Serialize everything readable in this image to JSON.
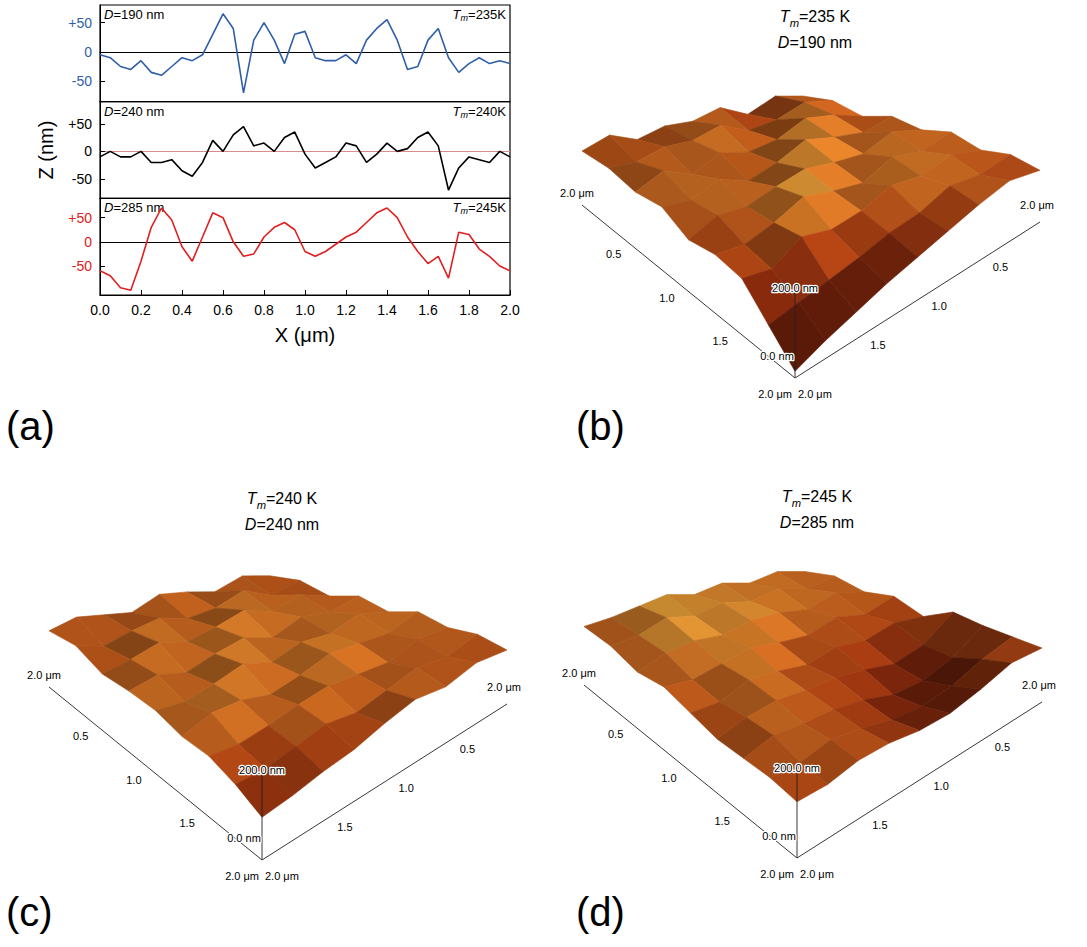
{
  "chart_data": [
    {
      "type": "line",
      "panel": "(a)",
      "xlabel": "X (μm)",
      "ylabel": "Z (nm)",
      "xlim": [
        0,
        2
      ],
      "xticks": [
        {
          "value": 0,
          "label": "0.0"
        },
        0.2,
        0.4,
        0.6,
        0.8,
        {
          "value": 1,
          "label": "1.0"
        },
        1.2,
        1.4,
        1.6,
        1.8,
        {
          "value": 2,
          "label": "2.0"
        }
      ],
      "x": [
        0,
        0.05,
        0.1,
        0.15,
        0.2,
        0.25,
        0.3,
        0.35,
        0.4,
        0.45,
        0.5,
        0.55,
        0.6,
        0.65,
        0.7,
        0.75,
        0.8,
        0.85,
        0.9,
        0.95,
        1,
        1.05,
        1.1,
        1.15,
        1.2,
        1.25,
        1.3,
        1.35,
        1.4,
        1.45,
        1.5,
        1.55,
        1.6,
        1.65,
        1.7,
        1.75,
        1.8,
        1.85,
        1.9,
        1.95,
        2
      ],
      "series": [
        {
          "color": "#2f5fa8",
          "annotation_left": "D=190 nm",
          "annotation_right": "Tm=235K",
          "ylim": [
            -85,
            80
          ],
          "yticks": [
            {
              "value": 50,
              "label": "+50"
            },
            0,
            -50
          ],
          "values": [
            -5,
            -10,
            -25,
            -30,
            -15,
            -35,
            -40,
            -25,
            -10,
            -15,
            -5,
            30,
            65,
            40,
            -70,
            20,
            50,
            20,
            -20,
            30,
            35,
            -10,
            -15,
            -15,
            -5,
            -20,
            20,
            40,
            55,
            20,
            -30,
            -25,
            20,
            40,
            -10,
            -35,
            -20,
            -10,
            -20,
            -15,
            -20
          ]
        },
        {
          "color": "#000000",
          "annotation_left": "D=240 nm",
          "annotation_right": "Tm=240K",
          "ylim": [
            -85,
            90
          ],
          "yticks": [
            {
              "value": 50,
              "label": "+50"
            },
            0,
            -50
          ],
          "values": [
            -10,
            0,
            -10,
            -10,
            0,
            -20,
            -20,
            -15,
            -35,
            -45,
            -20,
            20,
            0,
            30,
            45,
            10,
            15,
            0,
            25,
            35,
            -5,
            -30,
            -20,
            -10,
            15,
            10,
            -20,
            -5,
            15,
            0,
            5,
            25,
            35,
            10,
            -70,
            -30,
            -10,
            -15,
            -20,
            0,
            -10
          ]
        },
        {
          "color": "#e02020",
          "annotation_left": "D=285 nm",
          "annotation_right": "Tm=245K",
          "ylim": [
            -110,
            90
          ],
          "yticks": [
            {
              "value": 50,
              "label": "+50"
            },
            0,
            -50
          ],
          "values": [
            -60,
            -70,
            -95,
            -100,
            -40,
            30,
            70,
            45,
            -10,
            -40,
            10,
            60,
            50,
            0,
            -30,
            -25,
            10,
            30,
            40,
            25,
            -20,
            -30,
            -20,
            -5,
            10,
            20,
            40,
            60,
            70,
            50,
            10,
            -20,
            -45,
            -30,
            -75,
            20,
            15,
            -15,
            -30,
            -50,
            -60
          ]
        }
      ]
    },
    {
      "type": "surface",
      "panel": "(b)",
      "title": "Tm=235 K",
      "subtitle": "D=190 nm",
      "xlabel": "2.0 μm",
      "ylabel": "2.0 μm",
      "xlim": [
        0,
        2
      ],
      "ylim": [
        0,
        2
      ],
      "zlim": [
        0,
        200
      ],
      "xticks": [
        0.5,
        {
          "value": 1,
          "label": "1.0"
        },
        1.5,
        {
          "value": 2,
          "label": "2.0 μm"
        }
      ],
      "yticks": [
        0.5,
        {
          "value": 1,
          "label": "1.0"
        },
        1.5,
        {
          "value": 2,
          "label": "2.0 μm"
        }
      ],
      "zticks": [
        {
          "value": 0,
          "label": "0.0 nm"
        },
        {
          "value": 200,
          "label": "200.0 nm"
        }
      ],
      "x": [
        0,
        0.25,
        0.5,
        0.75,
        1,
        1.25,
        1.5,
        1.75,
        2
      ],
      "y": [
        0,
        0.25,
        0.5,
        0.75,
        1,
        1.25,
        1.5,
        1.75,
        2
      ],
      "z": [
        [
          120,
          135,
          110,
          140,
          125,
          130,
          115,
          140,
          120
        ],
        [
          130,
          145,
          125,
          120,
          150,
          135,
          140,
          125,
          130
        ],
        [
          115,
          140,
          155,
          130,
          125,
          145,
          120,
          150,
          125
        ],
        [
          135,
          125,
          140,
          160,
          135,
          120,
          150,
          130,
          140
        ],
        [
          125,
          150,
          130,
          140,
          155,
          145,
          130,
          140,
          115
        ],
        [
          140,
          130,
          150,
          125,
          140,
          160,
          135,
          120,
          130
        ],
        [
          120,
          145,
          135,
          150,
          130,
          125,
          145,
          110,
          125
        ],
        [
          130,
          125,
          140,
          120,
          115,
          100,
          90,
          80,
          70
        ],
        [
          115,
          135,
          125,
          110,
          95,
          80,
          60,
          40,
          15
        ]
      ]
    },
    {
      "type": "surface",
      "panel": "(c)",
      "title": "Tm=240 K",
      "subtitle": "D=240 nm",
      "xlabel": "2.0 μm",
      "ylabel": "2.0 μm",
      "xlim": [
        0,
        2
      ],
      "ylim": [
        0,
        2
      ],
      "zlim": [
        0,
        200
      ],
      "xticks": [
        0.5,
        {
          "value": 1,
          "label": "1.0"
        },
        1.5,
        {
          "value": 2,
          "label": "2.0 μm"
        }
      ],
      "yticks": [
        0.5,
        {
          "value": 1,
          "label": "1.0"
        },
        1.5,
        {
          "value": 2,
          "label": "2.0 μm"
        }
      ],
      "zticks": [
        {
          "value": 0,
          "label": "0.0 nm"
        },
        {
          "value": 200,
          "label": "200.0 nm"
        }
      ],
      "x": [
        0,
        0.25,
        0.5,
        0.75,
        1,
        1.25,
        1.5,
        1.75,
        2
      ],
      "y": [
        0,
        0.25,
        0.5,
        0.75,
        1,
        1.25,
        1.5,
        1.75,
        2
      ],
      "z": [
        [
          125,
          140,
          120,
          135,
          145,
          120,
          130,
          140,
          125
        ],
        [
          135,
          120,
          150,
          130,
          125,
          145,
          135,
          120,
          140
        ],
        [
          120,
          145,
          130,
          155,
          140,
          130,
          150,
          135,
          125
        ],
        [
          140,
          130,
          145,
          125,
          150,
          140,
          125,
          145,
          135
        ],
        [
          125,
          150,
          135,
          145,
          130,
          155,
          140,
          130,
          140
        ],
        [
          145,
          130,
          140,
          150,
          135,
          125,
          145,
          150,
          130
        ],
        [
          130,
          140,
          125,
          135,
          145,
          140,
          130,
          125,
          135
        ],
        [
          135,
          125,
          140,
          130,
          120,
          135,
          125,
          115,
          120
        ],
        [
          120,
          135,
          125,
          140,
          130,
          115,
          110,
          100,
          95
        ]
      ]
    },
    {
      "type": "surface",
      "panel": "(d)",
      "title": "Tm=245 K",
      "subtitle": "D=285 nm",
      "xlabel": "2.0 μm",
      "ylabel": "2.0 μm",
      "xlim": [
        0,
        2
      ],
      "ylim": [
        0,
        2
      ],
      "zlim": [
        0,
        200
      ],
      "xticks": [
        0.5,
        {
          "value": 1,
          "label": "1.0"
        },
        1.5,
        {
          "value": 2,
          "label": "2.0 μm"
        }
      ],
      "yticks": [
        0.5,
        {
          "value": 1,
          "label": "1.0"
        },
        1.5,
        {
          "value": 2,
          "label": "2.0 μm"
        }
      ],
      "zticks": [
        {
          "value": 0,
          "label": "0.0 nm"
        },
        {
          "value": 200,
          "label": "200.0 nm"
        }
      ],
      "x": [
        0,
        0.25,
        0.5,
        0.75,
        1,
        1.25,
        1.5,
        1.75,
        2
      ],
      "y": [
        0,
        0.25,
        0.5,
        0.75,
        1,
        1.25,
        1.5,
        1.75,
        2
      ],
      "z": [
        [
          130,
          145,
          135,
          150,
          140,
          155,
          145,
          135,
          130
        ],
        [
          140,
          130,
          150,
          140,
          155,
          145,
          160,
          140,
          135
        ],
        [
          125,
          145,
          130,
          145,
          150,
          140,
          150,
          145,
          125
        ],
        [
          135,
          120,
          140,
          125,
          135,
          150,
          140,
          130,
          140
        ],
        [
          110,
          125,
          115,
          130,
          120,
          135,
          145,
          125,
          130
        ],
        [
          140,
          100,
          90,
          110,
          125,
          130,
          140,
          135,
          120
        ],
        [
          130,
          95,
          80,
          85,
          110,
          125,
          130,
          140,
          125
        ],
        [
          125,
          115,
          95,
          90,
          100,
          120,
          135,
          125,
          130
        ],
        [
          120,
          130,
          115,
          105,
          110,
          125,
          130,
          120,
          125
        ]
      ]
    }
  ]
}
